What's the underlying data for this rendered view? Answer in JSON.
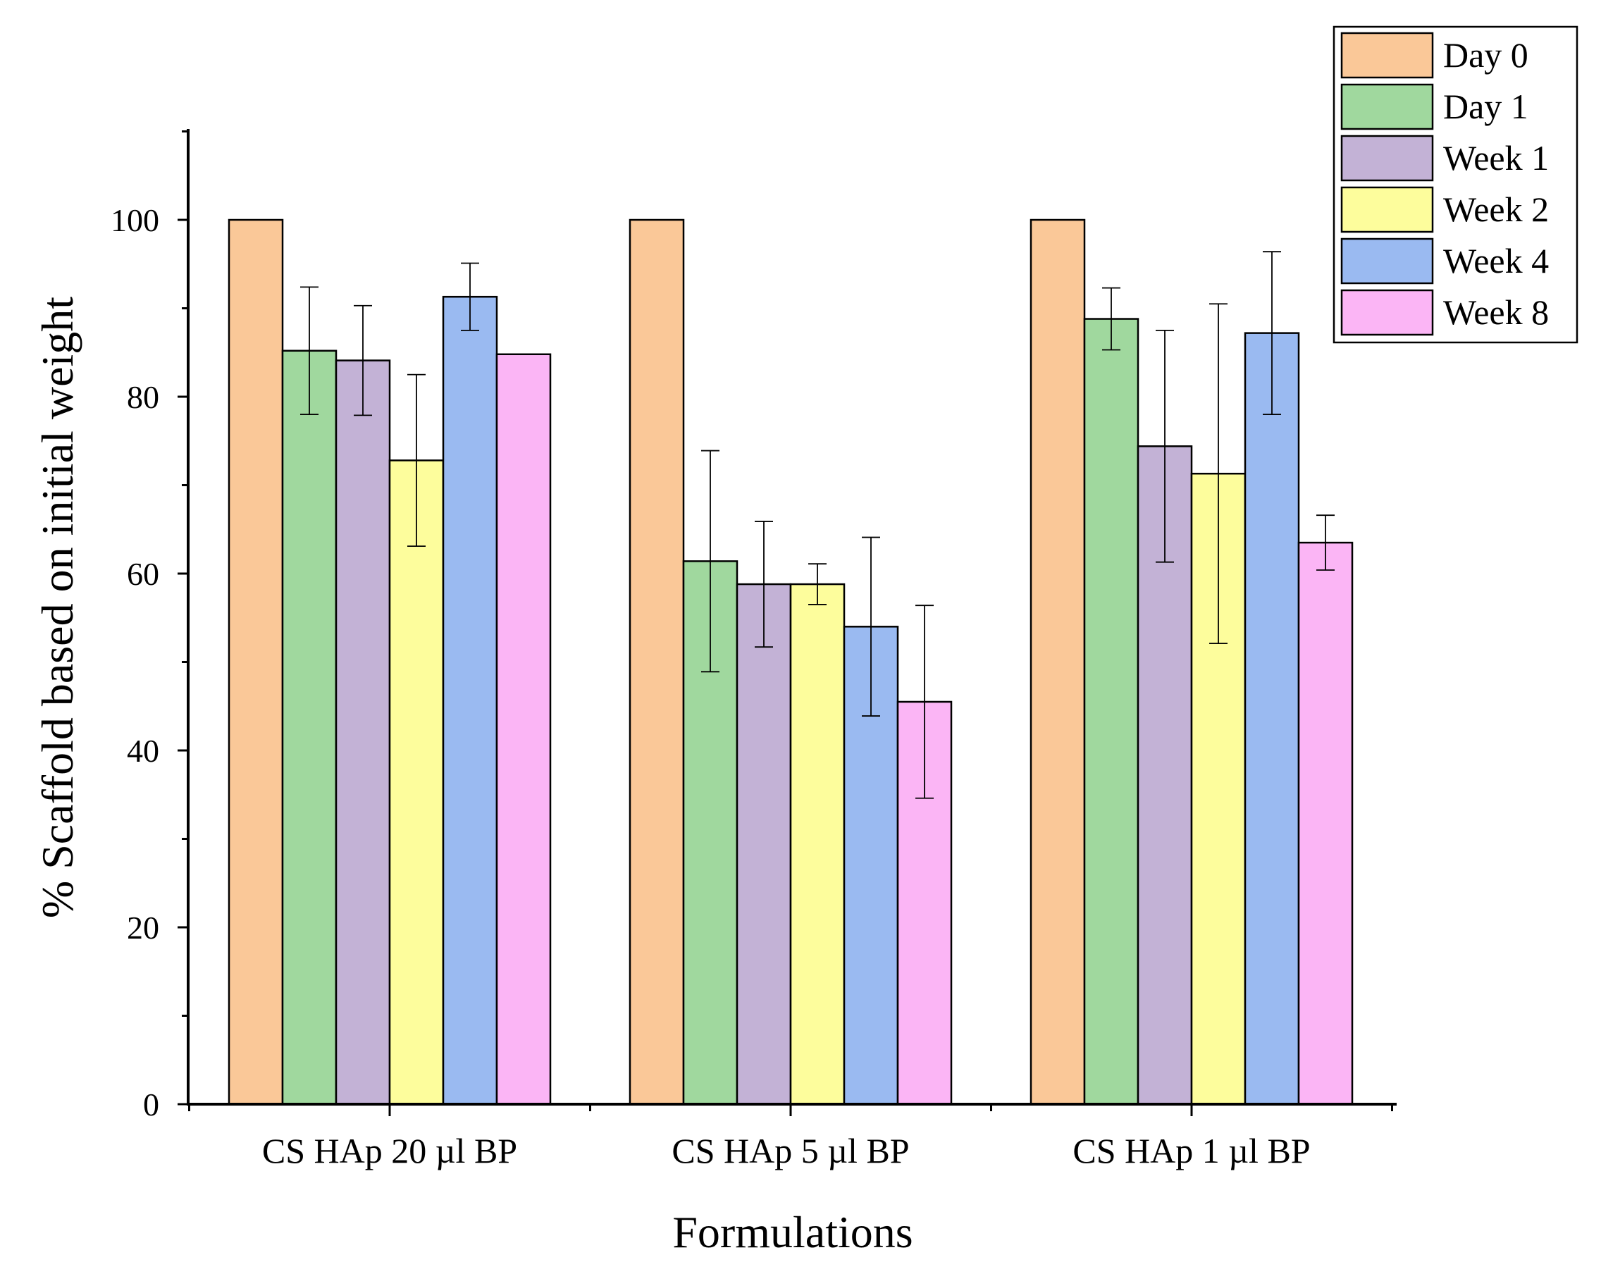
{
  "chart_data": {
    "type": "bar",
    "title": "",
    "xlabel": "Formulations",
    "ylabel": "% Scaffold based on initial weight",
    "ylim": [
      0,
      110
    ],
    "yticks": [
      0,
      20,
      40,
      60,
      80,
      100
    ],
    "grid": false,
    "legend_position": "top-right",
    "categories": [
      "CS HAp 20 µl BP",
      "CS HAp 5 µl BP",
      "CS HAp 1 µl BP"
    ],
    "series": [
      {
        "name": "Day 0",
        "color": "#FAC898",
        "values": [
          100,
          100,
          100
        ],
        "errors": [
          null,
          null,
          null
        ]
      },
      {
        "name": "Day 1",
        "color": "#A0D89E",
        "values": [
          85.2,
          61.4,
          88.8
        ],
        "errors": [
          7.2,
          12.5,
          3.5
        ]
      },
      {
        "name": "Week 1",
        "color": "#C3B2D6",
        "values": [
          84.1,
          58.8,
          74.4
        ],
        "errors": [
          6.2,
          7.1,
          13.1
        ]
      },
      {
        "name": "Week 2",
        "color": "#FDFD9C",
        "values": [
          72.8,
          58.8,
          71.3
        ],
        "errors": [
          9.7,
          2.3,
          19.2
        ]
      },
      {
        "name": "Week 4",
        "color": "#9ABAF1",
        "values": [
          91.3,
          54.0,
          87.2
        ],
        "errors": [
          3.8,
          10.1,
          9.2
        ]
      },
      {
        "name": "Week 8",
        "color": "#FBB5F5",
        "values": [
          84.8,
          45.5,
          63.5
        ],
        "errors": [
          null,
          10.9,
          3.1
        ]
      }
    ]
  }
}
